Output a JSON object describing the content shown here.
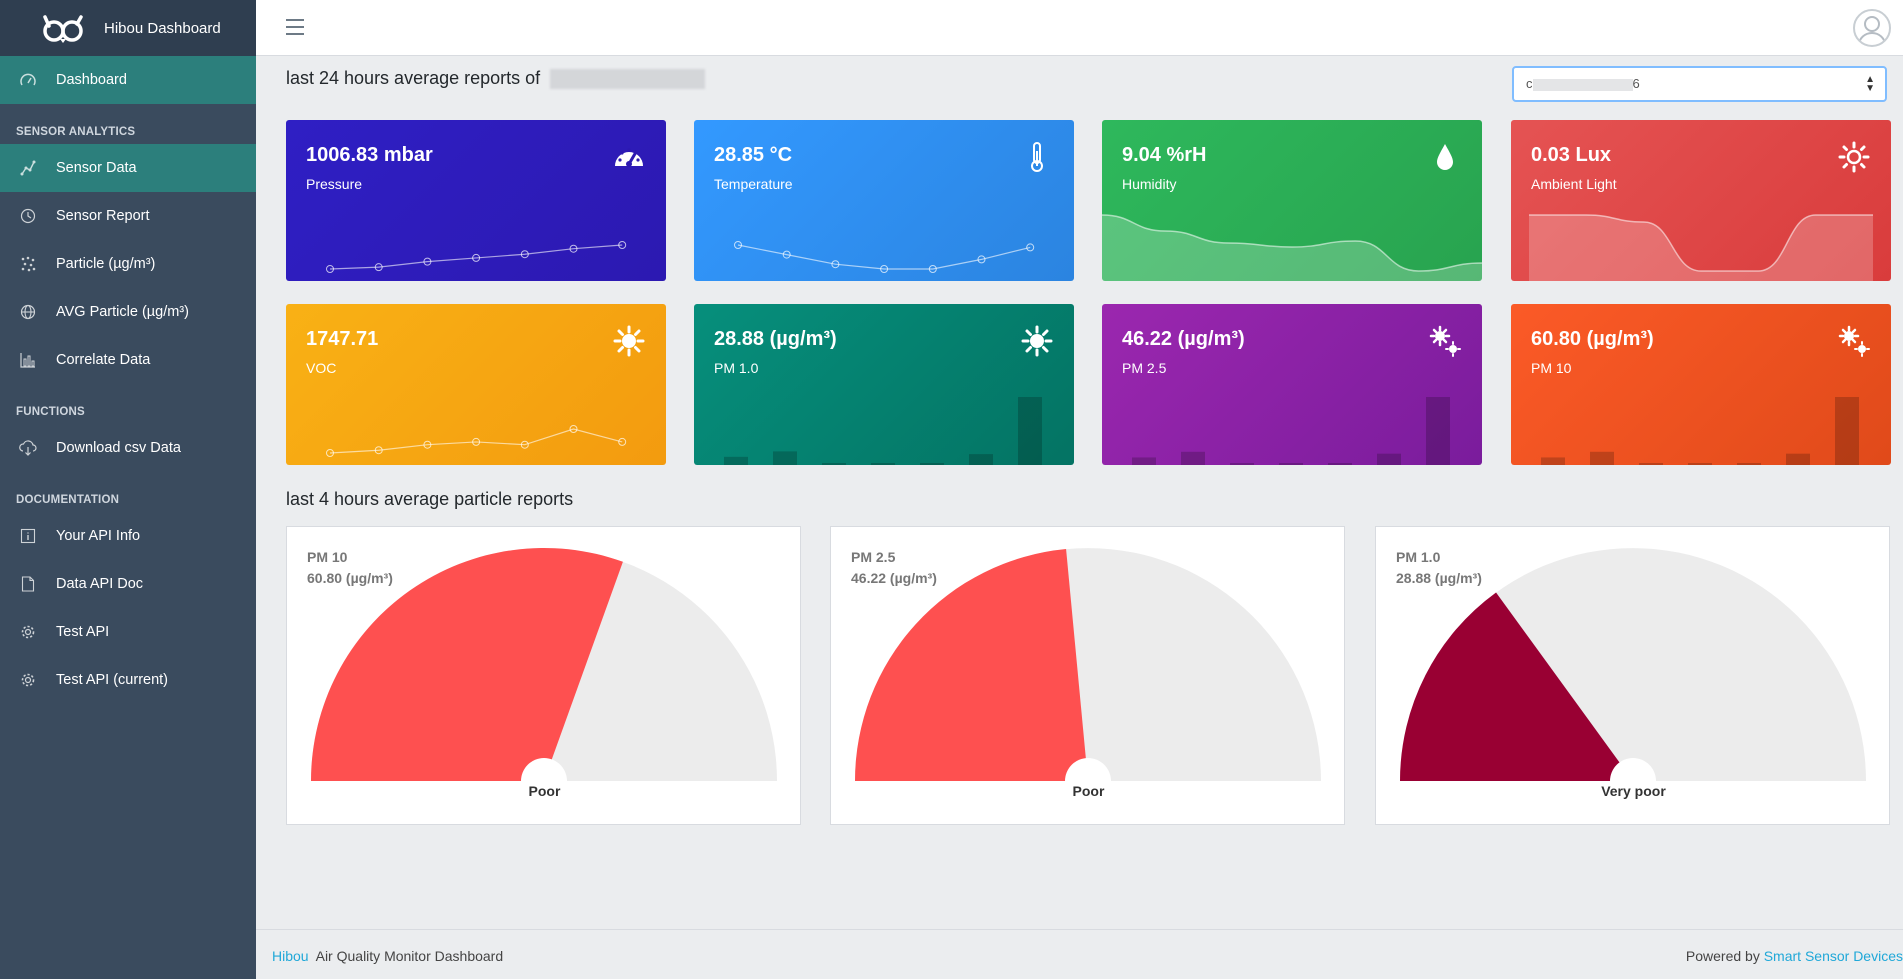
{
  "brand": {
    "name": "Hibou Dashboard"
  },
  "sidebar": {
    "dashboard": "Dashboard",
    "sections": [
      {
        "title": "SENSOR ANALYTICS",
        "items": [
          "Sensor Data",
          "Sensor Report",
          "Particle (µg/m³)",
          "AVG Particle (µg/m³)",
          "Correlate Data"
        ]
      },
      {
        "title": "FUNCTIONS",
        "items": [
          "Download csv Data"
        ]
      },
      {
        "title": "DOCUMENTATION",
        "items": [
          "Your API Info",
          "Data API Doc",
          "Test API",
          "Test API (current)"
        ]
      }
    ],
    "icons": [
      "dashboard-icon",
      "sensor-data-icon",
      "clock-icon",
      "particle-icon",
      "globe-icon",
      "bar-chart-icon",
      "cloud-download-icon",
      "info-icon",
      "document-icon",
      "gear-icon",
      "gear-icon"
    ]
  },
  "main": {
    "title24": "last 24 hours average reports of",
    "device_select": {
      "text_start": "c",
      "text_end": "6"
    },
    "title4": "last 4 hours average particle reports"
  },
  "cards": [
    {
      "value": "1006.83 mbar",
      "label": "Pressure",
      "icon": "speedometer-icon",
      "color_from": "#2f1fc4",
      "color_to": "#2c19b1",
      "kind": "line",
      "points": [
        1004.2,
        1004.4,
        1005.0,
        1005.4,
        1005.8,
        1006.4,
        1006.8
      ]
    },
    {
      "value": "28.85 °C",
      "label": "Temperature",
      "icon": "thermometer-icon",
      "color_from": "#3399ff",
      "color_to": "#2b84e0",
      "kind": "line",
      "points": [
        28.9,
        28.7,
        28.5,
        28.4,
        28.4,
        28.6,
        28.85
      ]
    },
    {
      "value": "9.04 %rH",
      "label": "Humidity",
      "icon": "drop-icon",
      "color_from": "#2eb85c",
      "color_to": "#28a34f",
      "kind": "area",
      "points": [
        9.9,
        9.5,
        9.2,
        9.1,
        9.25,
        8.5,
        8.7
      ]
    },
    {
      "value": "0.03 Lux",
      "label": "Ambient Light",
      "icon": "sun-icon",
      "color_from": "#e55353",
      "color_to": "#d93c3c",
      "kind": "area",
      "points": [
        0.08,
        0.08,
        0.07,
        0.0,
        0.0,
        0.08,
        0.08
      ]
    },
    {
      "value": "1747.71",
      "label": "VOC",
      "icon": "virus-icon",
      "color_from": "#f9b115",
      "color_to": "#f39b0f",
      "kind": "line",
      "points": [
        1500,
        1530,
        1590,
        1620,
        1590,
        1760,
        1620
      ]
    },
    {
      "value": "28.88 (µg/m³)",
      "label": "PM 1.0",
      "icon": "virus-icon",
      "color_from": "#068f7c",
      "color_to": "#047363",
      "kind": "bar",
      "points": [
        6,
        10,
        1,
        1,
        1,
        8,
        50
      ]
    },
    {
      "value": "46.22 (µg/m³)",
      "label": "PM 2.5",
      "icon": "gears-icon",
      "color_from": "#9b27af",
      "color_to": "#7a1c9c",
      "kind": "bar",
      "points": [
        4,
        7,
        1,
        1,
        1,
        6,
        36
      ]
    },
    {
      "value": "60.80 (µg/m³)",
      "label": "PM 10",
      "icon": "gears-icon",
      "color_from": "#fb5a27",
      "color_to": "#e04a1a",
      "kind": "bar",
      "points": [
        4,
        7,
        1,
        1,
        1,
        6,
        36
      ]
    }
  ],
  "gauges": [
    {
      "title": "PM 10",
      "value": "60.80 (µg/m³)",
      "status": "Poor",
      "fraction": 0.61,
      "color": "#fe5050"
    },
    {
      "title": "PM 2.5",
      "value": "46.22 (µg/m³)",
      "status": "Poor",
      "fraction": 0.47,
      "color": "#fe5050"
    },
    {
      "title": "PM 1.0",
      "value": "28.88 (µg/m³)",
      "status": "Very poor",
      "fraction": 0.3,
      "color": "#990033"
    }
  ],
  "footer": {
    "brand": "Hibou",
    "text": "Air Quality Monitor Dashboard",
    "powered": "Powered by",
    "company": "Smart Sensor Devices"
  }
}
